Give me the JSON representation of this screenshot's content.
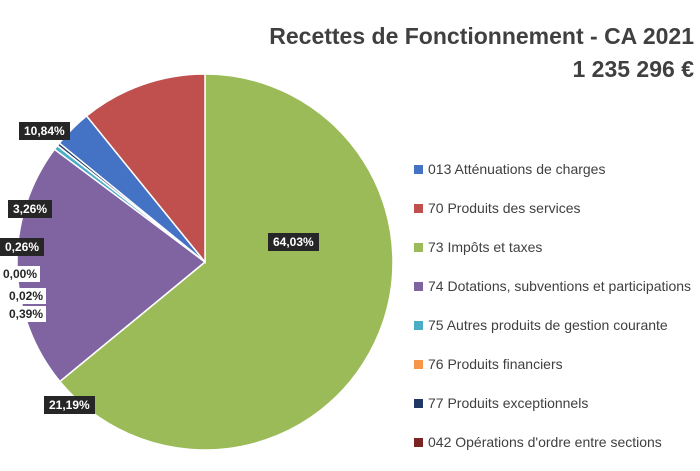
{
  "chart_data": {
    "type": "pie",
    "title": [
      "Recettes de Fonctionnement - CA 2021",
      "1 235 296 €"
    ],
    "legend_position": "right",
    "slices": [
      {
        "name": "013 Atténuations de charges",
        "value": 3.26,
        "label": "3,26%",
        "color": "#4472C4"
      },
      {
        "name": "70 Produits des services",
        "value": 10.84,
        "label": "10,84%",
        "color": "#C0504D"
      },
      {
        "name": "73 Impôts et taxes",
        "value": 64.03,
        "label": "64,03%",
        "color": "#9BBB59"
      },
      {
        "name": "74 Dotations, subventions et participations",
        "value": 21.19,
        "label": "21,19%",
        "color": "#8064A2"
      },
      {
        "name": "75 Autres produits de gestion courante",
        "value": 0.39,
        "label": "0,39%",
        "color": "#4BACC6"
      },
      {
        "name": "76 Produits financiers",
        "value": 0.02,
        "label": "0,02%",
        "color": "#F79646"
      },
      {
        "name": "77 Produits exceptionnels",
        "value": 0.26,
        "label": "0,26%",
        "color": "#1F3864"
      },
      {
        "name": "042 Opérations d'ordre entre sections",
        "value": 0.0,
        "label": "0,00%",
        "color": "#7B2424"
      }
    ]
  }
}
